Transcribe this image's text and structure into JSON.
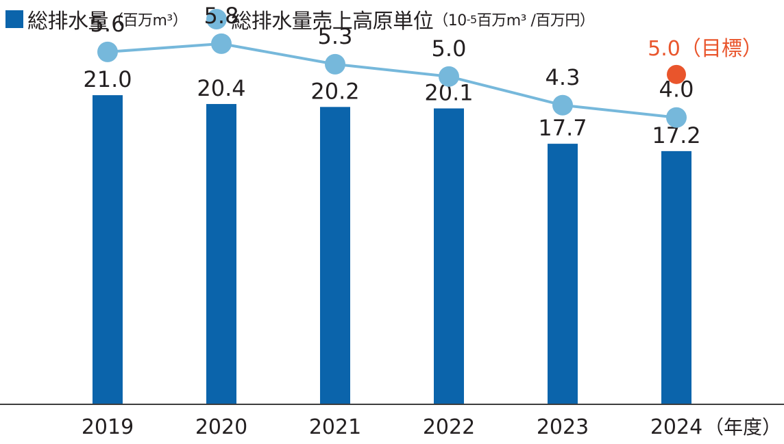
{
  "colors": {
    "bar": "#0b64ab",
    "line": "#76b8db",
    "target": "#e9552c",
    "axis": "#3c3c3c",
    "text": "#231f20"
  },
  "legend": {
    "bar_label": "総排水量",
    "bar_unit": "（百万m³）",
    "line_label": "総排水量売上高原単位",
    "line_unit_a": "（10",
    "line_unit_exp": "-5",
    "line_unit_b": "百万m³ /百万円）"
  },
  "chart_data": {
    "type": "bar+line",
    "categories": [
      "2019",
      "2020",
      "2021",
      "2022",
      "2023",
      "2024"
    ],
    "x_unit_label": "（年度）",
    "series": [
      {
        "name": "総排水量（百万m³）",
        "type": "bar",
        "values": [
          21.0,
          20.4,
          20.2,
          20.1,
          17.7,
          17.2
        ],
        "labels": [
          "21.0",
          "20.4",
          "20.2",
          "20.1",
          "17.7",
          "17.2"
        ]
      },
      {
        "name": "総排水量売上高原単位（10-5百万m³ /百万円）",
        "type": "line",
        "values": [
          5.6,
          5.8,
          5.3,
          5.0,
          4.3,
          4.0
        ],
        "labels": [
          "5.6",
          "5.8",
          "5.3",
          "5.0",
          "4.3",
          "4.0"
        ]
      }
    ],
    "target": {
      "category": "2024",
      "value": 5.0,
      "label": "5.0（目標）"
    },
    "bar_axis_range": [
      0,
      27
    ],
    "line_axis_range": [
      -3.0,
      6.7
    ],
    "grid": false
  }
}
